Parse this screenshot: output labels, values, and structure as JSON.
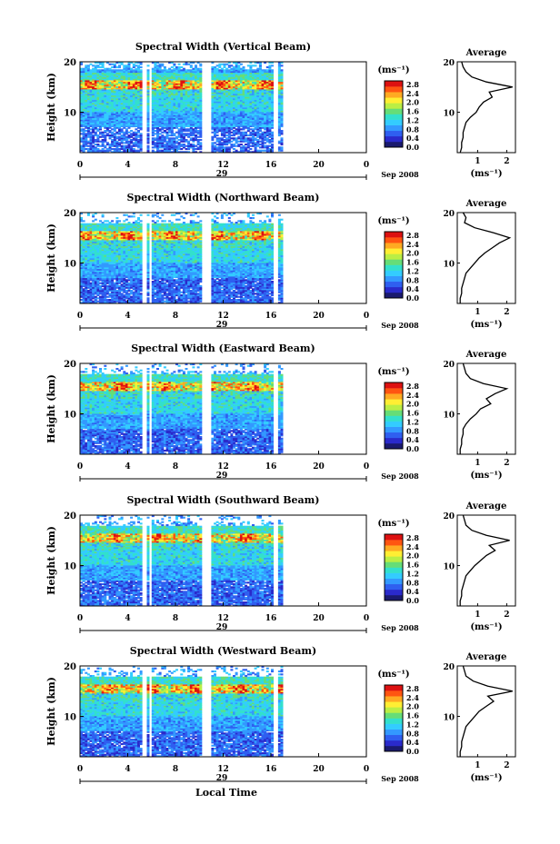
{
  "chart_data": {
    "type": "heatmap",
    "xlabel": "Local Time",
    "x_ticks": [
      "0",
      "4",
      "8",
      "12",
      "16",
      "20",
      "0"
    ],
    "date_label": "29",
    "month_label": "Sep 2008",
    "ylabel": "Height (km)",
    "y_ticks": [
      "20",
      "10"
    ],
    "ylim": [
      2,
      20
    ],
    "xlim": [
      0,
      24
    ],
    "colorbar": {
      "unit": "(ms⁻¹)",
      "ticks": [
        "2.8",
        "2.4",
        "2.0",
        "1.6",
        "1.2",
        "0.8",
        "0.4",
        "0.0"
      ],
      "colors": [
        "#1a1a6e",
        "#2a2acb",
        "#2f5ff0",
        "#3399ff",
        "#33ccff",
        "#33e0cc",
        "#66dd77",
        "#bbee44",
        "#ffee33",
        "#ffaa22",
        "#ff5511",
        "#dd1111"
      ]
    },
    "data_gaps_hours": [
      [
        5.2,
        5.5
      ],
      [
        5.8,
        5.95
      ],
      [
        10.2,
        10.9
      ],
      [
        16.2,
        16.5
      ],
      [
        17.1,
        24
      ]
    ],
    "panels": [
      {
        "title": "Spectral Width (Vertical Beam)",
        "average": {
          "title": "Average",
          "xlabel": "(ms⁻¹)",
          "x_ticks": [
            "1",
            "2"
          ],
          "xlim": [
            0.3,
            2.3
          ],
          "height_km": [
            2,
            3,
            4,
            5,
            6,
            7,
            8,
            9,
            10,
            11,
            12,
            13,
            14,
            15,
            16,
            17,
            18,
            19,
            20
          ],
          "values": [
            0.4,
            0.45,
            0.45,
            0.5,
            0.5,
            0.55,
            0.6,
            0.75,
            0.95,
            1.05,
            1.2,
            1.5,
            1.4,
            2.2,
            1.3,
            0.8,
            0.6,
            0.5,
            0.45
          ]
        }
      },
      {
        "title": "Spectral Width (Northward Beam)",
        "average": {
          "title": "Average",
          "xlabel": "(ms⁻¹)",
          "x_ticks": [
            "1",
            "2"
          ],
          "xlim": [
            0.3,
            2.3
          ],
          "height_km": [
            2,
            3,
            4,
            5,
            6,
            7,
            8,
            9,
            10,
            11,
            12,
            13,
            14,
            15,
            16,
            17,
            18,
            19,
            20
          ],
          "values": [
            0.4,
            0.4,
            0.45,
            0.45,
            0.5,
            0.55,
            0.6,
            0.75,
            0.9,
            1.05,
            1.25,
            1.5,
            1.75,
            2.1,
            1.55,
            0.9,
            0.55,
            0.6,
            0.5
          ]
        }
      },
      {
        "title": "Spectral Width (Eastward Beam)",
        "average": {
          "title": "Average",
          "xlabel": "(ms⁻¹)",
          "x_ticks": [
            "1",
            "2"
          ],
          "xlim": [
            0.3,
            2.3
          ],
          "height_km": [
            2,
            3,
            4,
            5,
            6,
            7,
            8,
            9,
            10,
            11,
            12,
            13,
            14,
            15,
            16,
            17,
            18,
            19,
            20
          ],
          "values": [
            0.4,
            0.4,
            0.45,
            0.45,
            0.5,
            0.5,
            0.6,
            0.75,
            0.95,
            1.1,
            1.45,
            1.3,
            1.6,
            2.0,
            1.2,
            0.75,
            0.6,
            0.55,
            0.5
          ]
        }
      },
      {
        "title": "Spectral Width (Southward Beam)",
        "average": {
          "title": "Average",
          "xlabel": "(ms⁻¹)",
          "x_ticks": [
            "1",
            "2"
          ],
          "xlim": [
            0.3,
            2.3
          ],
          "height_km": [
            2,
            3,
            4,
            5,
            6,
            7,
            8,
            9,
            10,
            11,
            12,
            13,
            14,
            15,
            16,
            17,
            18,
            19,
            20
          ],
          "values": [
            0.4,
            0.4,
            0.45,
            0.45,
            0.5,
            0.55,
            0.6,
            0.75,
            0.9,
            1.1,
            1.3,
            1.6,
            1.4,
            2.1,
            1.3,
            0.8,
            0.6,
            0.55,
            0.5
          ]
        }
      },
      {
        "title": "Spectral Width (Westward Beam)",
        "average": {
          "title": "Average",
          "xlabel": "(ms⁻¹)",
          "x_ticks": [
            "1",
            "2"
          ],
          "xlim": [
            0.3,
            2.3
          ],
          "height_km": [
            2,
            3,
            4,
            5,
            6,
            7,
            8,
            9,
            10,
            11,
            12,
            13,
            14,
            15,
            16,
            17,
            18,
            19,
            20
          ],
          "values": [
            0.4,
            0.4,
            0.45,
            0.45,
            0.5,
            0.55,
            0.6,
            0.75,
            0.9,
            1.05,
            1.3,
            1.55,
            1.35,
            2.2,
            1.35,
            0.85,
            0.6,
            0.55,
            0.5
          ]
        }
      }
    ]
  }
}
